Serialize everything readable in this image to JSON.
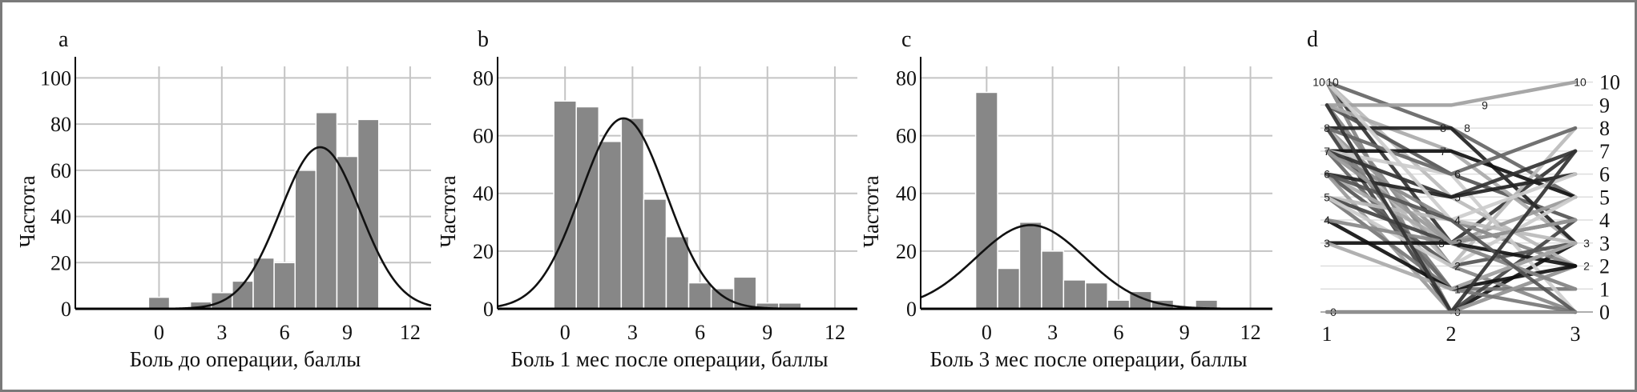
{
  "colors": {
    "bar": "#878787",
    "bar_edge": "#ffffff",
    "curve": "#111111",
    "grid": "#c4c4c4",
    "axis": "#000000",
    "frame": "#7a7a7a"
  },
  "chart_data": [
    {
      "type": "bar",
      "panel": "a",
      "xlabel": "Боль до операции, баллы",
      "ylabel": "Частота",
      "xlim": [
        -4,
        13
      ],
      "ylim": [
        0,
        105
      ],
      "xticks": [
        0,
        3,
        6,
        9,
        12
      ],
      "yticks": [
        0,
        20,
        40,
        60,
        80,
        100
      ],
      "grid": true,
      "bin_width": 1,
      "bins": [
        {
          "x": 0,
          "y": 5
        },
        {
          "x": 1,
          "y": 0
        },
        {
          "x": 2,
          "y": 3
        },
        {
          "x": 3,
          "y": 7
        },
        {
          "x": 4,
          "y": 12
        },
        {
          "x": 5,
          "y": 22
        },
        {
          "x": 6,
          "y": 20
        },
        {
          "x": 7,
          "y": 60
        },
        {
          "x": 8,
          "y": 85
        },
        {
          "x": 9,
          "y": 66
        },
        {
          "x": 10,
          "y": 82
        }
      ],
      "normal_curve": {
        "mean": 7.7,
        "sd": 1.9,
        "peak": 70
      }
    },
    {
      "type": "bar",
      "panel": "b",
      "xlabel": "Боль 1 мес после операции, баллы",
      "ylabel": "Частота",
      "xlim": [
        -3,
        13
      ],
      "ylim": [
        0,
        84
      ],
      "xticks": [
        0,
        3,
        6,
        9,
        12
      ],
      "yticks": [
        0,
        20,
        40,
        60,
        80
      ],
      "grid": true,
      "bin_width": 1,
      "bins": [
        {
          "x": 0,
          "y": 72
        },
        {
          "x": 1,
          "y": 70
        },
        {
          "x": 2,
          "y": 58
        },
        {
          "x": 3,
          "y": 66
        },
        {
          "x": 4,
          "y": 38
        },
        {
          "x": 5,
          "y": 25
        },
        {
          "x": 6,
          "y": 9
        },
        {
          "x": 7,
          "y": 7
        },
        {
          "x": 8,
          "y": 11
        },
        {
          "x": 9,
          "y": 2
        },
        {
          "x": 10,
          "y": 2
        }
      ],
      "normal_curve": {
        "mean": 2.6,
        "sd": 1.9,
        "peak": 66
      }
    },
    {
      "type": "bar",
      "panel": "c",
      "xlabel": "Боль 3 мес после операции, баллы",
      "ylabel": "Частота",
      "xlim": [
        -3,
        13
      ],
      "ylim": [
        0,
        84
      ],
      "xticks": [
        0,
        3,
        6,
        9,
        12
      ],
      "yticks": [
        0,
        20,
        40,
        60,
        80
      ],
      "grid": true,
      "bin_width": 1,
      "bins": [
        {
          "x": 0,
          "y": 75
        },
        {
          "x": 1,
          "y": 14
        },
        {
          "x": 2,
          "y": 30
        },
        {
          "x": 3,
          "y": 20
        },
        {
          "x": 4,
          "y": 10
        },
        {
          "x": 5,
          "y": 9
        },
        {
          "x": 6,
          "y": 3
        },
        {
          "x": 7,
          "y": 6
        },
        {
          "x": 8,
          "y": 3
        },
        {
          "x": 9,
          "y": 0
        },
        {
          "x": 10,
          "y": 3
        }
      ],
      "normal_curve": {
        "mean": 2.0,
        "sd": 2.5,
        "peak": 29
      }
    },
    {
      "type": "line",
      "panel": "d",
      "x": [
        1,
        2,
        3
      ],
      "xlim": [
        0.95,
        3.1
      ],
      "ylim": [
        0,
        10.3
      ],
      "xticks": [
        1,
        2,
        3
      ],
      "yticks_right": [
        0,
        1,
        2,
        3,
        4,
        5,
        6,
        7,
        8,
        9,
        10
      ],
      "grid": true,
      "point_labels": {
        "t1": [
          "10",
          "10",
          "8",
          "7",
          "6",
          "5",
          "4",
          "3",
          "0"
        ],
        "t2": [
          "9",
          "8",
          "8",
          "7",
          "6",
          "5",
          "4",
          "3",
          "3",
          "2",
          "1",
          "0"
        ],
        "t3": [
          "10",
          "3",
          "2"
        ]
      },
      "series": [
        {
          "values": [
            10,
            0,
            3
          ],
          "color": "#111111"
        },
        {
          "values": [
            10,
            3,
            7
          ],
          "color": "#333333"
        },
        {
          "values": [
            10,
            8,
            5
          ],
          "color": "#666666"
        },
        {
          "values": [
            10,
            0,
            2
          ],
          "color": "#999999"
        },
        {
          "values": [
            10,
            5,
            2
          ],
          "color": "#bbbbbb"
        },
        {
          "values": [
            9,
            2,
            0
          ],
          "color": "#888888"
        },
        {
          "values": [
            9,
            6,
            4
          ],
          "color": "#555555"
        },
        {
          "values": [
            9,
            7,
            3
          ],
          "color": "#aaaaaa"
        },
        {
          "values": [
            8,
            1,
            1
          ],
          "color": "#777777"
        },
        {
          "values": [
            8,
            8,
            3
          ],
          "color": "#222222"
        },
        {
          "values": [
            8,
            3,
            5
          ],
          "color": "#999999"
        },
        {
          "values": [
            8,
            2,
            8
          ],
          "color": "#bbbbbb"
        },
        {
          "values": [
            8,
            0,
            4
          ],
          "color": "#444444"
        },
        {
          "values": [
            7,
            7,
            5
          ],
          "color": "#111111"
        },
        {
          "values": [
            7,
            4,
            2
          ],
          "color": "#888888"
        },
        {
          "values": [
            7,
            6,
            0
          ],
          "color": "#cccccc"
        },
        {
          "values": [
            7,
            1,
            3
          ],
          "color": "#666666"
        },
        {
          "values": [
            7,
            5,
            7
          ],
          "color": "#333333"
        },
        {
          "values": [
            6,
            3,
            1
          ],
          "color": "#aaaaaa"
        },
        {
          "values": [
            6,
            2,
            3
          ],
          "color": "#555555"
        },
        {
          "values": [
            6,
            0,
            2
          ],
          "color": "#999999"
        },
        {
          "values": [
            6,
            5,
            6
          ],
          "color": "#222222"
        },
        {
          "values": [
            5,
            4,
            3
          ],
          "color": "#bbbbbb"
        },
        {
          "values": [
            5,
            1,
            0
          ],
          "color": "#777777"
        },
        {
          "values": [
            5,
            3,
            4
          ],
          "color": "#444444"
        },
        {
          "values": [
            5,
            2,
            5
          ],
          "color": "#cccccc"
        },
        {
          "values": [
            4,
            1,
            2
          ],
          "color": "#111111"
        },
        {
          "values": [
            4,
            3,
            1
          ],
          "color": "#888888"
        },
        {
          "values": [
            3,
            3,
            2
          ],
          "color": "#111111"
        },
        {
          "values": [
            3,
            1,
            3
          ],
          "color": "#aaaaaa"
        },
        {
          "values": [
            9,
            9,
            10
          ],
          "color": "#a0a0a0"
        },
        {
          "values": [
            8,
            6,
            8
          ],
          "color": "#666666"
        },
        {
          "values": [
            10,
            4,
            6
          ],
          "color": "#cccccc"
        },
        {
          "values": [
            7,
            3,
            4
          ],
          "color": "#999999"
        },
        {
          "values": [
            6,
            4,
            0
          ],
          "color": "#555555"
        },
        {
          "values": [
            9,
            0,
            7
          ],
          "color": "#333333"
        },
        {
          "values": [
            0,
            0,
            0
          ],
          "color": "#777777"
        }
      ]
    }
  ]
}
